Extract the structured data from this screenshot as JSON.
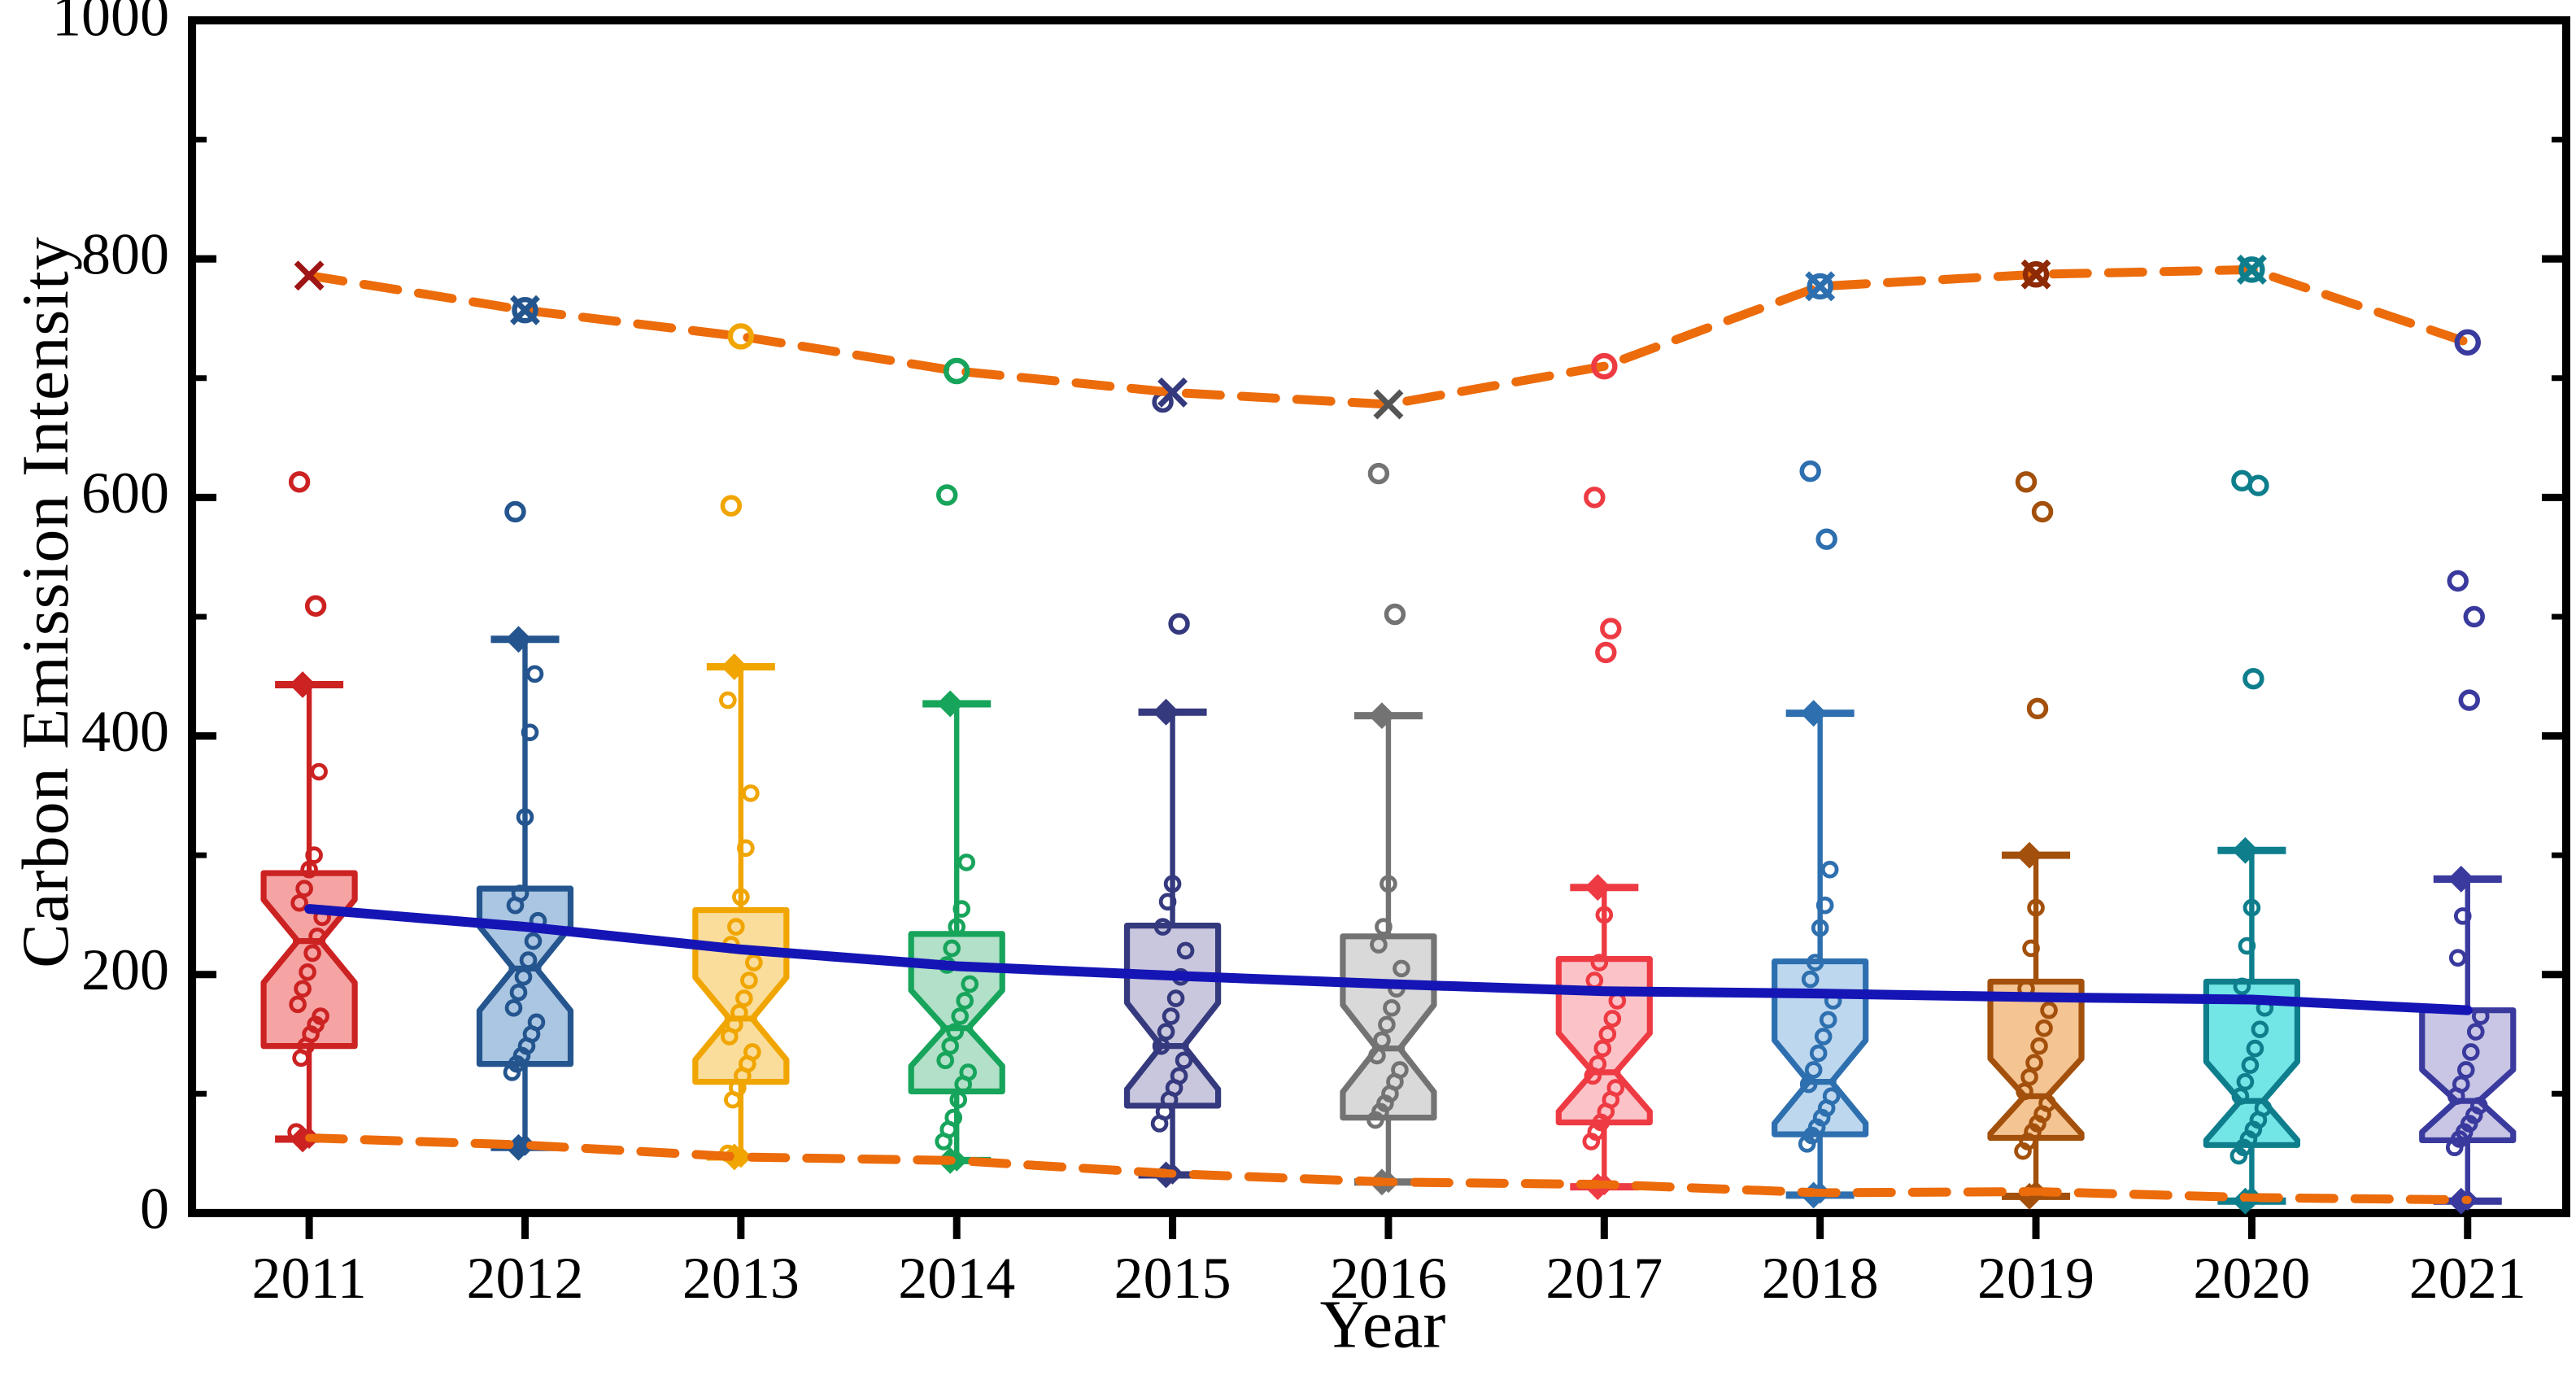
{
  "chart_data": {
    "type": "box",
    "title": "",
    "xlabel": "Year",
    "ylabel": "Carbon Emission Intensity",
    "ylim": [
      0,
      1000
    ],
    "yticks_major": [
      0,
      200,
      400,
      600,
      800,
      1000
    ],
    "yticks_minor": [
      100,
      300,
      500,
      700,
      900
    ],
    "grid": "off",
    "legend": "none",
    "frame": "full-box with inward ticks left/right, outward ticks bottom",
    "categories": [
      "2011",
      "2012",
      "2013",
      "2014",
      "2015",
      "2016",
      "2017",
      "2018",
      "2019",
      "2020",
      "2021"
    ],
    "axis_color": "#000000",
    "series": {
      "boxes": [
        {
          "year": "2011",
          "color": "#CC2222",
          "fill": "#F5A3A3",
          "whisker_low": 62,
          "q1": 140,
          "median": 228,
          "q3": 285,
          "whisker_high": 443,
          "mean": 255,
          "outliers": [
            613,
            509
          ],
          "points": [
            68,
            130,
            140,
            150,
            158,
            165,
            175,
            188,
            202,
            218,
            232,
            248,
            260,
            272,
            288,
            300,
            370
          ]
        },
        {
          "year": "2012",
          "color": "#24558E",
          "fill": "#AAC6E2",
          "whisker_low": 55,
          "q1": 125,
          "median": 205,
          "q3": 272,
          "whisker_high": 481,
          "mean": 240,
          "outliers": [
            588
          ],
          "points": [
            118,
            125,
            132,
            140,
            150,
            160,
            172,
            185,
            198,
            212,
            228,
            245,
            258,
            268,
            332,
            403,
            452
          ]
        },
        {
          "year": "2013",
          "color": "#F0A500",
          "fill": "#FADD9A",
          "whisker_low": 47,
          "q1": 110,
          "median": 163,
          "q3": 254,
          "whisker_high": 458,
          "mean": 221,
          "outliers": [
            593
          ],
          "points": [
            50,
            95,
            105,
            115,
            125,
            135,
            148,
            158,
            168,
            180,
            195,
            210,
            225,
            240,
            265,
            306,
            352,
            430
          ]
        },
        {
          "year": "2014",
          "color": "#17A45B",
          "fill": "#B2E0C8",
          "whisker_low": 44,
          "q1": 102,
          "median": 155,
          "q3": 234,
          "whisker_high": 427,
          "mean": 207,
          "outliers": [
            602
          ],
          "points": [
            60,
            70,
            80,
            95,
            108,
            118,
            128,
            140,
            152,
            165,
            178,
            192,
            208,
            222,
            240,
            255,
            294
          ]
        },
        {
          "year": "2015",
          "color": "#35397E",
          "fill": "#C9C7DD",
          "whisker_low": 32,
          "q1": 90,
          "median": 140,
          "q3": 241,
          "whisker_high": 420,
          "mean": 199,
          "outliers": [
            680,
            494
          ],
          "points": [
            75,
            85,
            95,
            105,
            115,
            128,
            140,
            152,
            165,
            180,
            198,
            220,
            240,
            261,
            276
          ]
        },
        {
          "year": "2016",
          "color": "#737373",
          "fill": "#D9D9D9",
          "whisker_low": 26,
          "q1": 80,
          "median": 138,
          "q3": 232,
          "whisker_high": 417,
          "mean": 192,
          "outliers": [
            620,
            502
          ],
          "points": [
            78,
            85,
            92,
            100,
            110,
            120,
            132,
            145,
            158,
            172,
            188,
            205,
            225,
            240,
            276
          ]
        },
        {
          "year": "2017",
          "color": "#EE3B43",
          "fill": "#FBC3C8",
          "whisker_low": 22,
          "q1": 76,
          "median": 118,
          "q3": 213,
          "whisker_high": 273,
          "mean": 186,
          "outliers": [
            600,
            490,
            470
          ],
          "points": [
            60,
            68,
            76,
            85,
            95,
            105,
            115,
            125,
            138,
            150,
            163,
            178,
            195,
            210,
            250
          ]
        },
        {
          "year": "2018",
          "color": "#2E6FAF",
          "fill": "#BDD7EE",
          "whisker_low": 15,
          "q1": 66,
          "median": 110,
          "q3": 211,
          "whisker_high": 419,
          "mean": 184,
          "outliers": [
            622,
            565
          ],
          "points": [
            58,
            65,
            72,
            80,
            88,
            98,
            108,
            120,
            134,
            148,
            162,
            178,
            196,
            210,
            239,
            258,
            288
          ]
        },
        {
          "year": "2019",
          "color": "#A3500C",
          "fill": "#F5C493",
          "whisker_low": 14,
          "q1": 63,
          "median": 98,
          "q3": 194,
          "whisker_high": 300,
          "mean": 181,
          "outliers": [
            613,
            588,
            423
          ],
          "points": [
            52,
            60,
            68,
            75,
            83,
            92,
            102,
            114,
            126,
            140,
            155,
            170,
            188,
            222,
            256
          ]
        },
        {
          "year": "2020",
          "color": "#0E7E8C",
          "fill": "#72E6E6",
          "whisker_low": 10,
          "q1": 57,
          "median": 94,
          "q3": 194,
          "whisker_high": 304,
          "mean": 179,
          "outliers": [
            614,
            610,
            448
          ],
          "points": [
            48,
            55,
            62,
            70,
            78,
            88,
            98,
            110,
            124,
            138,
            154,
            172,
            190,
            224,
            256
          ]
        },
        {
          "year": "2021",
          "color": "#3A3A9E",
          "fill": "#C8C6E4",
          "whisker_low": 10,
          "q1": 61,
          "median": 94,
          "q3": 170,
          "whisker_high": 280,
          "mean": 170,
          "outliers": [
            530,
            500,
            430
          ],
          "points": [
            55,
            62,
            68,
            75,
            82,
            90,
            98,
            108,
            120,
            135,
            152,
            165,
            214,
            249
          ]
        }
      ],
      "upper_envelope": {
        "label": "annual maximum (dashed)",
        "color": "#EC6B0B",
        "style": "dashed",
        "values": [
          786,
          757,
          735,
          706,
          688,
          678,
          710,
          777,
          787,
          791,
          730
        ],
        "marker_shapes": [
          "x",
          "circle-x",
          "circle",
          "circle",
          "x",
          "x",
          "circle",
          "circle-x",
          "circle-x",
          "circle-x",
          "circle"
        ],
        "marker_colors": [
          "#9E1515",
          "#24558E",
          "#F0A500",
          "#17A45B",
          "#35397E",
          "#555555",
          "#EE3B43",
          "#2E6FAF",
          "#8E2B06",
          "#0E7E8C",
          "#3A3A9E"
        ]
      },
      "lower_envelope": {
        "label": "annual minimum (dashed)",
        "color": "#EC6B0B",
        "style": "dashed",
        "values": [
          63,
          57,
          47,
          44,
          33,
          26,
          24,
          17,
          18,
          13,
          11
        ]
      },
      "trend": {
        "label": "mean trend line",
        "color": "#1515B5",
        "style": "solid",
        "values": [
          255,
          240,
          221,
          207,
          199,
          192,
          186,
          184,
          181,
          179,
          170
        ]
      }
    }
  }
}
